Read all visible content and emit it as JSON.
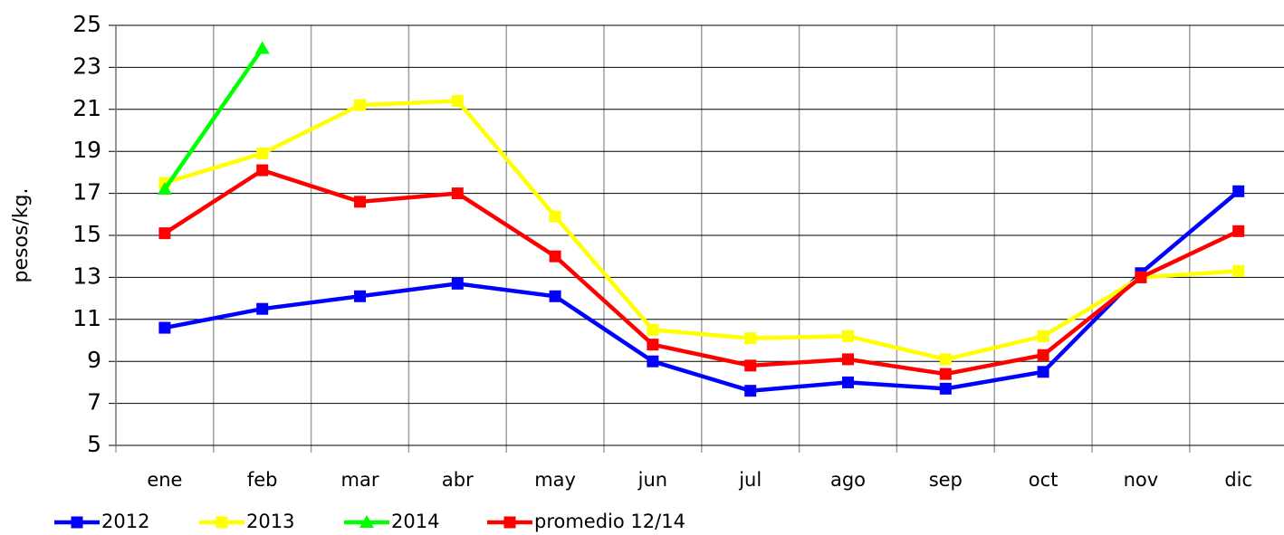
{
  "chart_data": {
    "type": "line",
    "y_label": "pesos/kg.",
    "categories": [
      "ene",
      "feb",
      "mar",
      "abr",
      "may",
      "jun",
      "jul",
      "ago",
      "sep",
      "oct",
      "nov",
      "dic"
    ],
    "series": [
      {
        "name": "2012",
        "color": "#0000ff",
        "marker": "square",
        "values": [
          10.6,
          11.5,
          12.1,
          12.7,
          12.1,
          9.0,
          7.6,
          8.0,
          7.7,
          8.5,
          13.2,
          17.1
        ]
      },
      {
        "name": "2013",
        "color": "#ffff00",
        "marker": "square",
        "values": [
          17.5,
          18.9,
          21.2,
          21.4,
          15.9,
          10.5,
          10.1,
          10.2,
          9.1,
          10.2,
          13.0,
          13.3
        ]
      },
      {
        "name": "2014",
        "color": "#00ff00",
        "marker": "triangle",
        "values": [
          17.2,
          23.9,
          null,
          null,
          null,
          null,
          null,
          null,
          null,
          null,
          null,
          null
        ]
      },
      {
        "name": "promedio 12/14",
        "color": "#ff0000",
        "marker": "square",
        "values": [
          15.1,
          18.1,
          16.6,
          17.0,
          14.0,
          9.8,
          8.8,
          9.1,
          8.4,
          9.3,
          13.0,
          15.2
        ]
      }
    ],
    "ylim": [
      5,
      25
    ],
    "yticks": [
      5,
      7,
      9,
      11,
      13,
      15,
      17,
      19,
      21,
      23,
      25
    ],
    "grid": true,
    "legend": "bottom"
  }
}
